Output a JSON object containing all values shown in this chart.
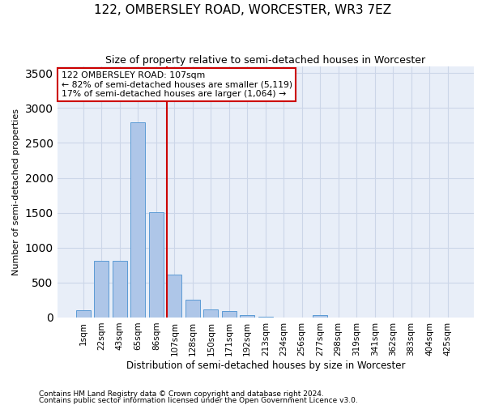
{
  "title": "122, OMBERSLEY ROAD, WORCESTER, WR3 7EZ",
  "subtitle": "Size of property relative to semi-detached houses in Worcester",
  "xlabel": "Distribution of semi-detached houses by size in Worcester",
  "ylabel": "Number of semi-detached properties",
  "categories": [
    "1sqm",
    "22sqm",
    "43sqm",
    "65sqm",
    "86sqm",
    "107sqm",
    "128sqm",
    "150sqm",
    "171sqm",
    "192sqm",
    "213sqm",
    "234sqm",
    "256sqm",
    "277sqm",
    "298sqm",
    "319sqm",
    "341sqm",
    "362sqm",
    "383sqm",
    "404sqm",
    "425sqm"
  ],
  "values": [
    100,
    810,
    810,
    2800,
    1510,
    610,
    255,
    115,
    95,
    30,
    15,
    5,
    5,
    40,
    5,
    0,
    0,
    0,
    0,
    0,
    0
  ],
  "bar_color": "#aec6e8",
  "bar_edge_color": "#5b9bd5",
  "property_line_idx": 5,
  "annotation_title": "122 OMBERSLEY ROAD: 107sqm",
  "annotation_line1": "← 82% of semi-detached houses are smaller (5,119)",
  "annotation_line2": "17% of semi-detached houses are larger (1,064) →",
  "annotation_box_color": "#ffffff",
  "annotation_box_edge_color": "#cc0000",
  "red_line_color": "#cc0000",
  "ylim": [
    0,
    3600
  ],
  "yticks": [
    0,
    500,
    1000,
    1500,
    2000,
    2500,
    3000,
    3500
  ],
  "grid_color": "#ccd6e8",
  "background_color": "#e8eef8",
  "footnote1": "Contains HM Land Registry data © Crown copyright and database right 2024.",
  "footnote2": "Contains public sector information licensed under the Open Government Licence v3.0."
}
